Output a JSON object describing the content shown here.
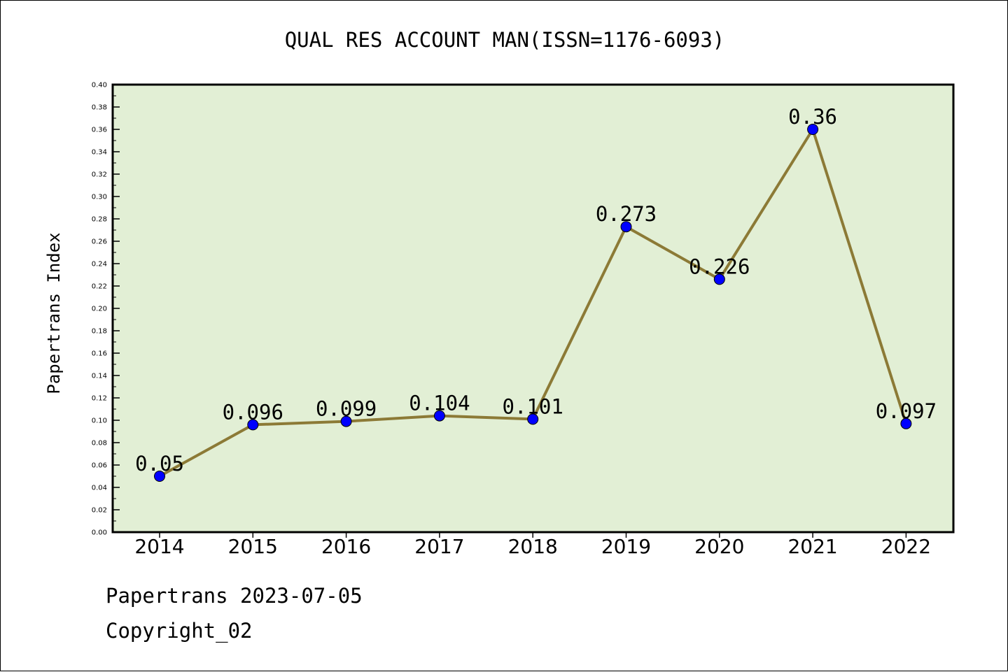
{
  "footer": {
    "date_label": "Papertrans 2023-07-05",
    "copyright_label": "Copyright_02"
  },
  "colors": {
    "plot_background": "#e2efd5",
    "line": "#8c7a36",
    "marker": "#0000ff",
    "axis": "#000000"
  },
  "chart_data": {
    "type": "line",
    "title": "QUAL RES ACCOUNT MAN(ISSN=1176-6093)",
    "xlabel": "",
    "ylabel": "Papertrans Index",
    "categories": [
      "2014",
      "2015",
      "2016",
      "2017",
      "2018",
      "2019",
      "2020",
      "2021",
      "2022"
    ],
    "values": [
      0.05,
      0.096,
      0.099,
      0.104,
      0.101,
      0.273,
      0.226,
      0.36,
      0.097
    ],
    "data_labels": [
      "0.05",
      "0.096",
      "0.099",
      "0.104",
      "0.101",
      "0.273",
      "0.226",
      "0.36",
      "0.097"
    ],
    "ylim": [
      0,
      0.4
    ],
    "yticks": [
      "0.00",
      "0.02",
      "0.04",
      "0.06",
      "0.08",
      "0.10",
      "0.12",
      "0.14",
      "0.16",
      "0.18",
      "0.20",
      "0.22",
      "0.24",
      "0.26",
      "0.28",
      "0.30",
      "0.32",
      "0.34",
      "0.36",
      "0.38",
      "0.40"
    ],
    "grid": false,
    "legend": "none"
  }
}
